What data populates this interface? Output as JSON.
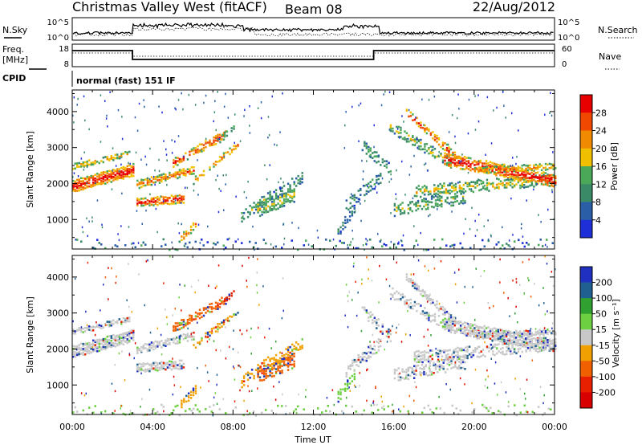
{
  "header": {
    "station": "Christmas Valley West (fitACF)",
    "beam": "Beam 08",
    "date": "22/Aug/2012"
  },
  "noise_panel": {
    "left_label": "N.Sky",
    "right_label": "N.Search",
    "left_ticks": [
      "10^5",
      "10^0"
    ],
    "right_ticks": [
      "10^5",
      "10^0"
    ]
  },
  "freq_panel": {
    "left_label_1": "Freq.",
    "left_label_2": "[MHz]",
    "right_label": "Nave",
    "left_ticks": [
      "18",
      "8"
    ],
    "right_ticks": [
      "60",
      "0"
    ],
    "cpid_label": "CPID",
    "cpid_text": "normal (fast) 151 IF"
  },
  "colors": {
    "power_scale": [
      "#1f2fd8",
      "#2a5fa8",
      "#3a8a68",
      "#4aa858",
      "#f0c000",
      "#f08a00",
      "#f04800",
      "#e80000"
    ],
    "velocity_scale": [
      "#2030c0",
      "#206090",
      "#30a030",
      "#6cd040",
      "#c8c8c8",
      "#f0a000",
      "#f06000",
      "#e82000",
      "#d80000"
    ]
  },
  "chart_data": [
    {
      "type": "heatmap",
      "title": "",
      "xlabel": "Time UT",
      "ylabel": "Slant Range [km]",
      "x_ticks": [
        "00:00",
        "04:00",
        "08:00",
        "12:00",
        "16:00",
        "20:00",
        "00:00"
      ],
      "y_ticks": [
        "1000",
        "2000",
        "3000",
        "4000"
      ],
      "colorbar": {
        "label": "Power [dB]",
        "ticks": [
          "4",
          "8",
          "12",
          "16",
          "20",
          "24",
          "28"
        ]
      }
    },
    {
      "type": "heatmap",
      "title": "",
      "xlabel": "Time UT",
      "ylabel": "Slant Range [km]",
      "x_ticks": [
        "00:00",
        "04:00",
        "08:00",
        "12:00",
        "16:00",
        "20:00",
        "00:00"
      ],
      "y_ticks": [
        "1000",
        "2000",
        "3000",
        "4000"
      ],
      "colorbar": {
        "label": "Velocity [m s⁻¹]",
        "ticks": [
          "200",
          "100",
          "50",
          "15",
          "-15",
          "-50",
          "-100",
          "-200"
        ]
      }
    }
  ]
}
